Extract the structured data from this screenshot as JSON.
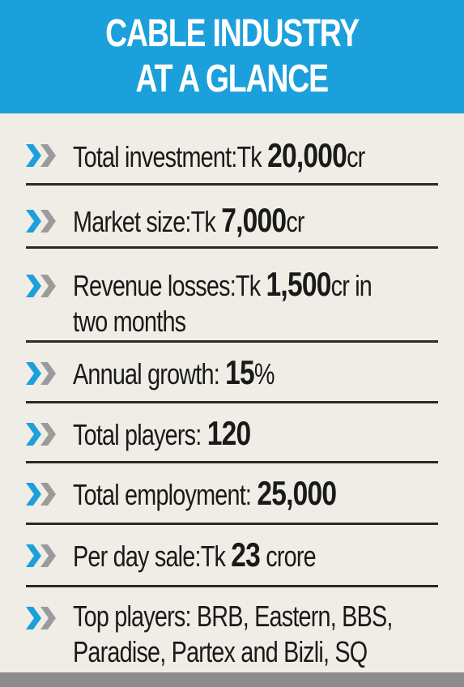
{
  "header": {
    "line1": "CABLE INDUSTRY",
    "line2": "AT A GLANCE"
  },
  "colors": {
    "header_bg": "#1ba0db",
    "chevron_blue": "#1ba0db",
    "chevron_gray": "#9b9b9b",
    "row_bg": "#efede6",
    "divider": "#2a2a2a",
    "footer_bar": "#8c8c8c"
  },
  "icon": "double-chevron-right-icon",
  "rows": [
    {
      "label": "Total investment:",
      "prefix": "Tk ",
      "value": "20,000",
      "suffix": "cr"
    },
    {
      "label": "Market size:",
      "prefix": "Tk ",
      "value": "7,000",
      "suffix": "cr"
    },
    {
      "label": "Revenue losses:",
      "prefix": "Tk ",
      "value": "1,500",
      "suffix": "cr in",
      "line2": "two months"
    },
    {
      "label": "Annual growth:",
      "prefix": " ",
      "value": "15",
      "suffix": "%"
    },
    {
      "label": "Total players:",
      "prefix": " ",
      "value": "120",
      "suffix": ""
    },
    {
      "label": "Total employment:",
      "prefix": " ",
      "value": "25,000",
      "suffix": ""
    },
    {
      "label": "Per day sale:",
      "prefix": "Tk ",
      "value": "23",
      "suffix": " crore"
    },
    {
      "label": "Top players: BRB, Eastern, BBS,",
      "line2": "Paradise, Partex and Bizli, SQ"
    }
  ]
}
